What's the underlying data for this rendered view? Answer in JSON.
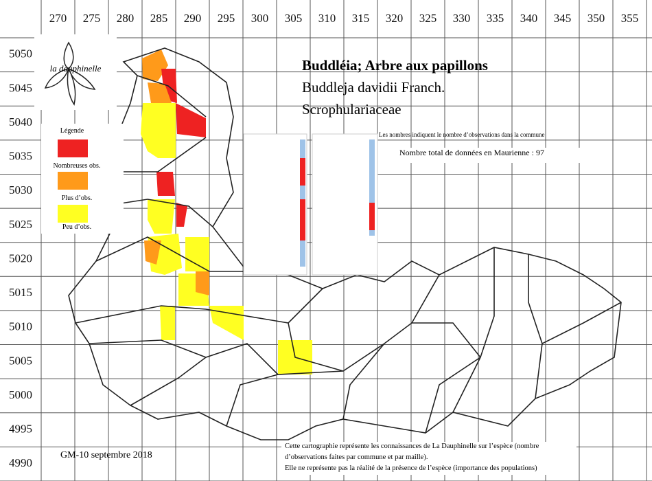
{
  "map": {
    "title": "Buddléia; Arbre aux papillons",
    "scientific_name": "Buddleja davidii Franch.",
    "family": "Scrophulariaceae",
    "logo": "la dauphinelle",
    "legend": {
      "title": "Légende",
      "items": [
        "Nombreuses obs.",
        "Plus d’obs.",
        "Peu d’obs."
      ]
    },
    "note": "Les nombres indiquent le nombre d’observations dans la commune",
    "total": "Nombre total de données en Maurienne : 97",
    "credit": "GM-10 septembre 2018",
    "footer": [
      "Cette cartographie représente les connaissances de La Dauphinelle sur l’espèce (nombre",
      "d’observations faites par commune et par maille).",
      "Elle ne représente pas la réalité de la présence de l’espèce (importance des populations)"
    ],
    "eastings": [
      270,
      275,
      280,
      285,
      290,
      295,
      300,
      305,
      310,
      315,
      320,
      325,
      330,
      335,
      340,
      345,
      350,
      355
    ],
    "northings": [
      5050,
      5045,
      5040,
      5035,
      5030,
      5025,
      5020,
      5015,
      5010,
      5005,
      5000,
      4995,
      4990
    ]
  }
}
